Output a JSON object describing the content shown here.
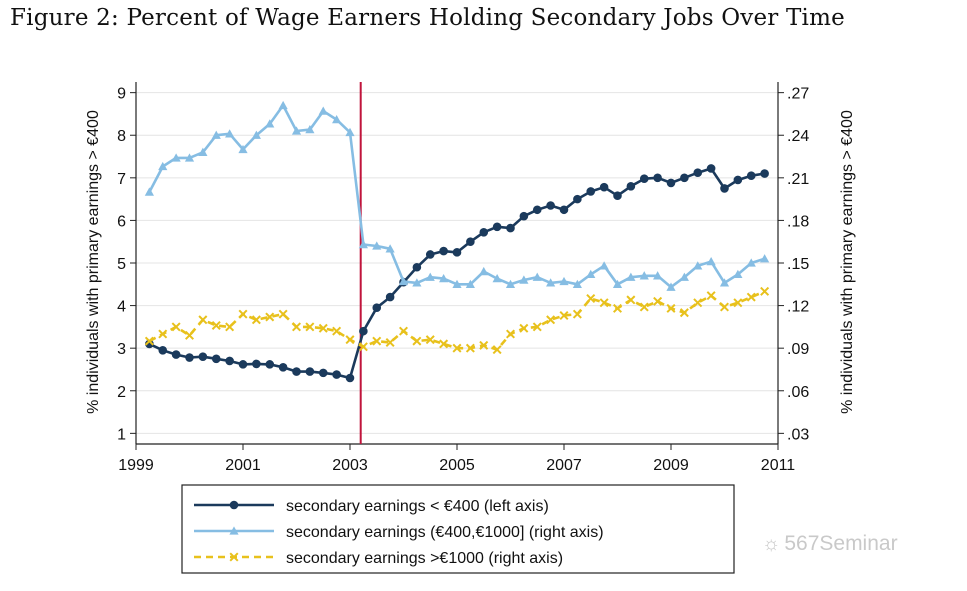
{
  "figure_title": "Figure 2: Percent of Wage Earners Holding Secondary Jobs Over Time",
  "watermark": "567Seminar",
  "chart_data": {
    "type": "line",
    "title": "Figure 2: Percent of Wage Earners Holding Secondary Jobs Over Time",
    "xlabel": "",
    "ylabel_left": "% individuals with primary earnings > €400",
    "ylabel_right": "% individuals with primary earnings > €400",
    "xlim": [
      1999,
      2011
    ],
    "xticks": [
      1999,
      2001,
      2003,
      2005,
      2007,
      2009,
      2011
    ],
    "xtick_labels": [
      "1999",
      "2001",
      "2003",
      "2005",
      "2007",
      "2009",
      "2011"
    ],
    "ylim_left": [
      0.75,
      9.25
    ],
    "yticks_left": [
      1,
      2,
      3,
      4,
      5,
      6,
      7,
      8,
      9
    ],
    "ytick_labels_left": [
      "1",
      "2",
      "3",
      "4",
      "5",
      "6",
      "7",
      "8",
      "9"
    ],
    "ylim_right": [
      0.0225,
      0.2775
    ],
    "yticks_right": [
      0.03,
      0.06,
      0.09,
      0.12,
      0.15,
      0.18,
      0.21,
      0.24,
      0.27
    ],
    "ytick_labels_right": [
      ".03",
      ".06",
      ".09",
      ".12",
      ".15",
      ".18",
      ".21",
      ".24",
      ".27"
    ],
    "grid": true,
    "vertical_line": {
      "x": 2003.2,
      "color": "#c0143c"
    },
    "legend_position": "bottom",
    "series": [
      {
        "name": "secondary earnings < €400 (left axis)",
        "axis": "left",
        "color": "#1b3a5c",
        "marker": "circle",
        "dash": "solid",
        "x": [
          1999.25,
          1999.5,
          1999.75,
          2000.0,
          2000.25,
          2000.5,
          2000.75,
          2001.0,
          2001.25,
          2001.5,
          2001.75,
          2002.0,
          2002.25,
          2002.5,
          2002.75,
          2003.0,
          2003.25,
          2003.5,
          2003.75,
          2004.0,
          2004.25,
          2004.5,
          2004.75,
          2005.0,
          2005.25,
          2005.5,
          2005.75,
          2006.0,
          2006.25,
          2006.5,
          2006.75,
          2007.0,
          2007.25,
          2007.5,
          2007.75,
          2008.0,
          2008.25,
          2008.5,
          2008.75,
          2009.0,
          2009.25,
          2009.5,
          2009.75,
          2010.0,
          2010.25,
          2010.5,
          2010.75
        ],
        "y": [
          3.1,
          2.95,
          2.85,
          2.78,
          2.8,
          2.75,
          2.7,
          2.62,
          2.63,
          2.62,
          2.55,
          2.45,
          2.45,
          2.42,
          2.38,
          2.3,
          3.4,
          3.95,
          4.2,
          4.55,
          4.9,
          5.2,
          5.28,
          5.25,
          5.5,
          5.72,
          5.85,
          5.82,
          6.1,
          6.25,
          6.35,
          6.25,
          6.5,
          6.68,
          6.78,
          6.58,
          6.8,
          6.98,
          7.0,
          6.88,
          7.0,
          7.12,
          7.22,
          6.75,
          6.95,
          7.05,
          7.1
        ]
      },
      {
        "name": "secondary earnings (€400,€1000] (right axis)",
        "axis": "right",
        "color": "#86bde3",
        "marker": "triangle",
        "dash": "solid",
        "x": [
          1999.25,
          1999.5,
          1999.75,
          2000.0,
          2000.25,
          2000.5,
          2000.75,
          2001.0,
          2001.25,
          2001.5,
          2001.75,
          2002.0,
          2002.25,
          2002.5,
          2002.75,
          2003.0,
          2003.25,
          2003.5,
          2003.75,
          2004.0,
          2004.25,
          2004.5,
          2004.75,
          2005.0,
          2005.25,
          2005.5,
          2005.75,
          2006.0,
          2006.25,
          2006.5,
          2006.75,
          2007.0,
          2007.25,
          2007.5,
          2007.75,
          2008.0,
          2008.25,
          2008.5,
          2008.75,
          2009.0,
          2009.25,
          2009.5,
          2009.75,
          2010.0,
          2010.25,
          2010.5,
          2010.75
        ],
        "y": [
          0.2,
          0.218,
          0.224,
          0.224,
          0.228,
          0.24,
          0.241,
          0.23,
          0.24,
          0.248,
          0.261,
          0.243,
          0.244,
          0.257,
          0.251,
          0.242,
          0.163,
          0.162,
          0.16,
          0.137,
          0.136,
          0.14,
          0.139,
          0.135,
          0.135,
          0.144,
          0.139,
          0.135,
          0.138,
          0.14,
          0.136,
          0.137,
          0.135,
          0.142,
          0.148,
          0.135,
          0.14,
          0.141,
          0.141,
          0.133,
          0.14,
          0.148,
          0.151,
          0.136,
          0.142,
          0.15,
          0.153
        ]
      },
      {
        "name": "secondary earnings >€1000 (right axis)",
        "axis": "right",
        "color": "#e8c11c",
        "marker": "x",
        "dash": "dashed",
        "x": [
          1999.25,
          1999.5,
          1999.75,
          2000.0,
          2000.25,
          2000.5,
          2000.75,
          2001.0,
          2001.25,
          2001.5,
          2001.75,
          2002.0,
          2002.25,
          2002.5,
          2002.75,
          2003.0,
          2003.25,
          2003.5,
          2003.75,
          2004.0,
          2004.25,
          2004.5,
          2004.75,
          2005.0,
          2005.25,
          2005.5,
          2005.75,
          2006.0,
          2006.25,
          2006.5,
          2006.75,
          2007.0,
          2007.25,
          2007.5,
          2007.75,
          2008.0,
          2008.25,
          2008.5,
          2008.75,
          2009.0,
          2009.25,
          2009.5,
          2009.75,
          2010.0,
          2010.25,
          2010.5,
          2010.75
        ],
        "y": [
          0.095,
          0.1,
          0.105,
          0.099,
          0.11,
          0.106,
          0.105,
          0.114,
          0.11,
          0.112,
          0.114,
          0.105,
          0.105,
          0.104,
          0.102,
          0.096,
          0.091,
          0.095,
          0.094,
          0.102,
          0.095,
          0.096,
          0.093,
          0.09,
          0.09,
          0.092,
          0.089,
          0.1,
          0.104,
          0.105,
          0.11,
          0.113,
          0.114,
          0.125,
          0.122,
          0.118,
          0.124,
          0.119,
          0.123,
          0.118,
          0.115,
          0.122,
          0.127,
          0.119,
          0.122,
          0.126,
          0.13
        ]
      }
    ]
  }
}
